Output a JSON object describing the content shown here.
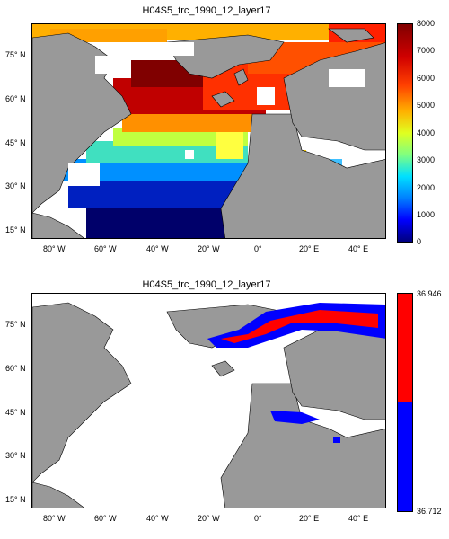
{
  "panels": [
    {
      "title": "H04S5_trc_1990_12_layer17",
      "lat_labels": [
        "75° N",
        "60° N",
        "45° N",
        "30° N",
        "15° N"
      ],
      "lon_labels": [
        "80° W",
        "60° W",
        "40° W",
        "20° W",
        "0°",
        "20° E",
        "40° E"
      ],
      "colorbar_ticks": [
        "8000",
        "7000",
        "6000",
        "5000",
        "4000",
        "3000",
        "2000",
        "1000",
        "0"
      ],
      "colormap": "jet"
    },
    {
      "title": "H04S5_trc_1990_12_layer17",
      "lat_labels": [
        "75° N",
        "60° N",
        "45° N",
        "30° N",
        "15° N"
      ],
      "lon_labels": [
        "80° W",
        "60° W",
        "40° W",
        "20° W",
        "0°",
        "20° E",
        "40° E"
      ],
      "colorbar_ticks": [
        "36.946",
        "36.712"
      ],
      "colors": {
        "high": "#ff0000",
        "low": "#0000ff"
      }
    }
  ],
  "colors": {
    "land": "#999999",
    "ocean_nodata": "#ffffff"
  }
}
